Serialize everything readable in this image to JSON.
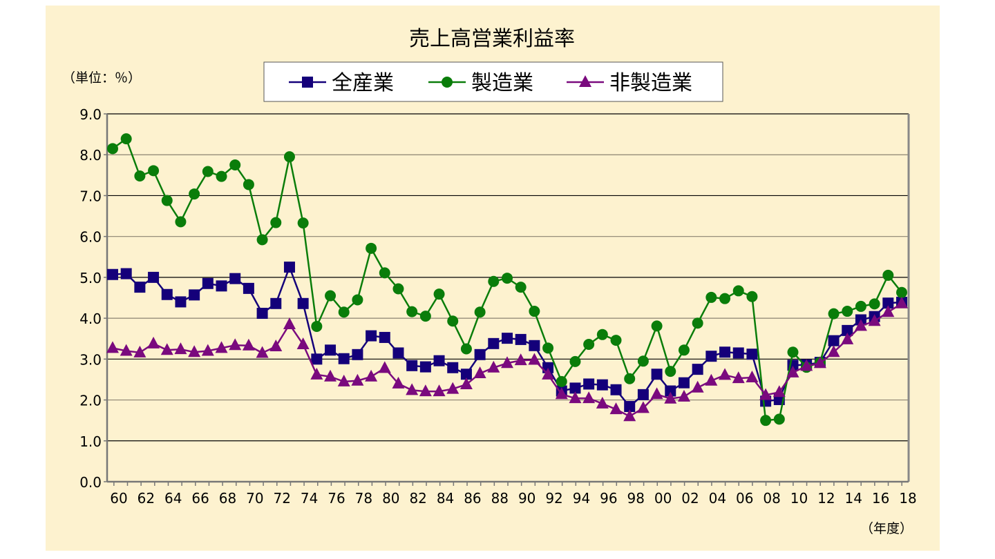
{
  "chart_data": {
    "type": "line",
    "title": "売上高営業利益率",
    "ylabel": "（単位：％）",
    "xlabel": "（年度）",
    "ylim": [
      0,
      9
    ],
    "yticks": [
      "0.0",
      "1.0",
      "2.0",
      "3.0",
      "4.0",
      "5.0",
      "6.0",
      "7.0",
      "8.0",
      "9.0"
    ],
    "x": [
      "60",
      "61",
      "62",
      "63",
      "64",
      "65",
      "66",
      "67",
      "68",
      "69",
      "70",
      "71",
      "72",
      "73",
      "74",
      "75",
      "76",
      "77",
      "78",
      "79",
      "80",
      "81",
      "82",
      "83",
      "84",
      "85",
      "86",
      "87",
      "88",
      "89",
      "90",
      "91",
      "92",
      "93",
      "94",
      "95",
      "96",
      "97",
      "98",
      "99",
      "00",
      "01",
      "02",
      "03",
      "04",
      "05",
      "06",
      "07",
      "08",
      "09",
      "10",
      "11",
      "12",
      "13",
      "14",
      "15",
      "16",
      "17",
      "18"
    ],
    "xtick_labels": [
      "60",
      "62",
      "64",
      "66",
      "68",
      "70",
      "72",
      "74",
      "76",
      "78",
      "80",
      "82",
      "84",
      "86",
      "88",
      "90",
      "92",
      "94",
      "96",
      "98",
      "00",
      "02",
      "04",
      "06",
      "08",
      "10",
      "12",
      "14",
      "16",
      "18"
    ],
    "grid": true,
    "legend": "top-center",
    "series": [
      {
        "name": "全産業",
        "color": "#14007a",
        "marker": "square",
        "values": [
          5.07,
          5.09,
          4.76,
          5.0,
          4.58,
          4.4,
          4.57,
          4.85,
          4.79,
          4.97,
          4.73,
          4.12,
          4.36,
          5.25,
          4.36,
          3.0,
          3.22,
          3.01,
          3.11,
          3.57,
          3.53,
          3.15,
          2.84,
          2.81,
          2.96,
          2.79,
          2.63,
          3.11,
          3.38,
          3.51,
          3.48,
          3.33,
          2.79,
          2.22,
          2.29,
          2.39,
          2.37,
          2.25,
          1.84,
          2.13,
          2.63,
          2.22,
          2.42,
          2.75,
          3.07,
          3.17,
          3.15,
          3.12,
          1.97,
          2.01,
          2.85,
          2.86,
          2.92,
          3.45,
          3.7,
          3.96,
          4.04,
          4.37,
          4.39
        ]
      },
      {
        "name": "製造業",
        "color": "#0a7d0a",
        "marker": "circle",
        "values": [
          8.15,
          8.39,
          7.48,
          7.61,
          6.88,
          6.36,
          7.04,
          7.59,
          7.47,
          7.75,
          7.27,
          5.92,
          6.34,
          7.95,
          6.33,
          3.8,
          4.55,
          4.15,
          4.45,
          5.71,
          5.11,
          4.72,
          4.16,
          4.05,
          4.59,
          3.93,
          3.25,
          4.15,
          4.9,
          4.98,
          4.76,
          4.17,
          3.27,
          2.45,
          2.94,
          3.36,
          3.6,
          3.46,
          2.52,
          2.95,
          3.81,
          2.7,
          3.22,
          3.88,
          4.51,
          4.48,
          4.67,
          4.53,
          1.5,
          1.53,
          3.17,
          2.8,
          2.92,
          4.11,
          4.17,
          4.29,
          4.35,
          5.05,
          4.63
        ]
      },
      {
        "name": "非製造業",
        "color": "#7a0a7e",
        "marker": "triangle",
        "values": [
          3.27,
          3.2,
          3.16,
          3.38,
          3.22,
          3.24,
          3.17,
          3.2,
          3.27,
          3.34,
          3.33,
          3.15,
          3.31,
          3.85,
          3.36,
          2.62,
          2.57,
          2.45,
          2.47,
          2.57,
          2.78,
          2.4,
          2.24,
          2.21,
          2.21,
          2.27,
          2.38,
          2.65,
          2.79,
          2.9,
          2.97,
          2.98,
          2.62,
          2.14,
          2.04,
          2.04,
          1.91,
          1.77,
          1.6,
          1.8,
          2.14,
          2.03,
          2.08,
          2.3,
          2.47,
          2.61,
          2.53,
          2.55,
          2.12,
          2.19,
          2.67,
          2.83,
          2.9,
          3.17,
          3.48,
          3.81,
          3.93,
          4.15,
          4.36
        ]
      }
    ]
  }
}
